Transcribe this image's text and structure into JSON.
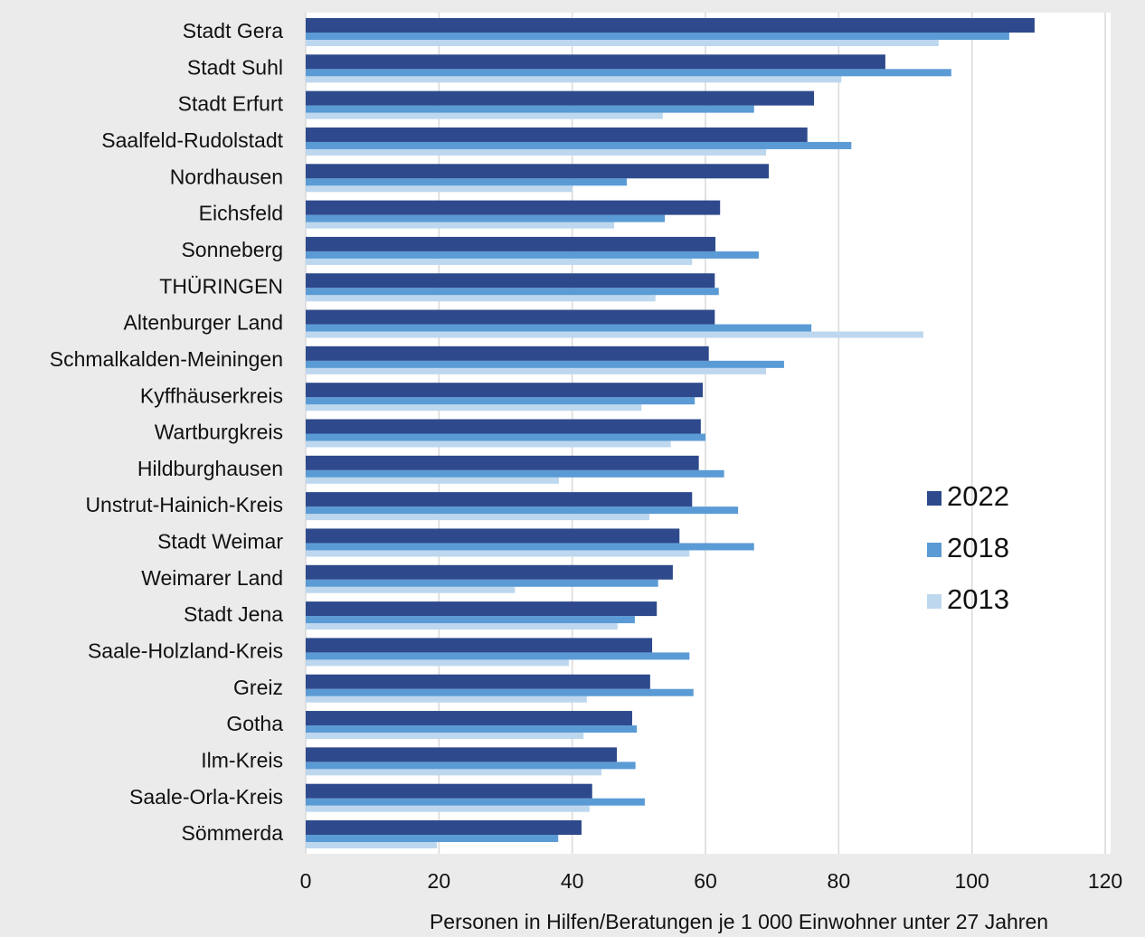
{
  "chart_data": {
    "type": "bar",
    "orientation": "horizontal",
    "x_label": "Personen in Hilfen/Beratungen je 1 000 Einwohner unter 27 Jahren",
    "categories": [
      "Stadt Gera",
      "Stadt Suhl",
      "Stadt Erfurt",
      "Saalfeld-Rudolstadt",
      "Nordhausen",
      "Eichsfeld",
      "Sonneberg",
      "THÜRINGEN",
      "Altenburger Land",
      "Schmalkalden-Meiningen",
      "Kyffhäuserkreis",
      "Wartburgkreis",
      "Hildburghausen",
      "Unstrut-Hainich-Kreis",
      "Stadt Weimar",
      "Weimarer Land",
      "Stadt Jena",
      "Saale-Holzland-Kreis",
      "Greiz",
      "Gotha",
      "Ilm-Kreis",
      "Saale-Orla-Kreis",
      "Sömmerda"
    ],
    "series": [
      {
        "name": "2022",
        "color": "#2e4a8c",
        "values": [
          109.4,
          87.0,
          76.3,
          75.3,
          69.5,
          62.2,
          61.5,
          61.4,
          61.4,
          60.5,
          59.6,
          59.3,
          59.0,
          58.0,
          56.1,
          55.1,
          52.7,
          52.0,
          51.7,
          49.0,
          46.7,
          43.0,
          41.4
        ]
      },
      {
        "name": "2018",
        "color": "#5b9bd5",
        "values": [
          105.6,
          96.9,
          67.3,
          81.9,
          48.2,
          53.9,
          68.0,
          62.0,
          75.9,
          71.8,
          58.4,
          60.0,
          62.8,
          64.9,
          67.3,
          52.9,
          49.4,
          57.6,
          58.2,
          49.7,
          49.5,
          50.9,
          37.9
        ]
      },
      {
        "name": "2013",
        "color": "#bdd7ee",
        "values": [
          95.0,
          80.4,
          53.6,
          69.1,
          40.0,
          46.3,
          58.0,
          52.5,
          92.7,
          69.1,
          50.4,
          54.8,
          38.0,
          51.6,
          57.6,
          31.4,
          46.8,
          39.5,
          42.2,
          41.7,
          44.4,
          42.6,
          19.7
        ]
      }
    ],
    "xlim": [
      0,
      120
    ],
    "xticks": [
      0,
      20,
      40,
      60,
      80,
      100,
      120
    ],
    "grid": true,
    "legend": "right"
  }
}
